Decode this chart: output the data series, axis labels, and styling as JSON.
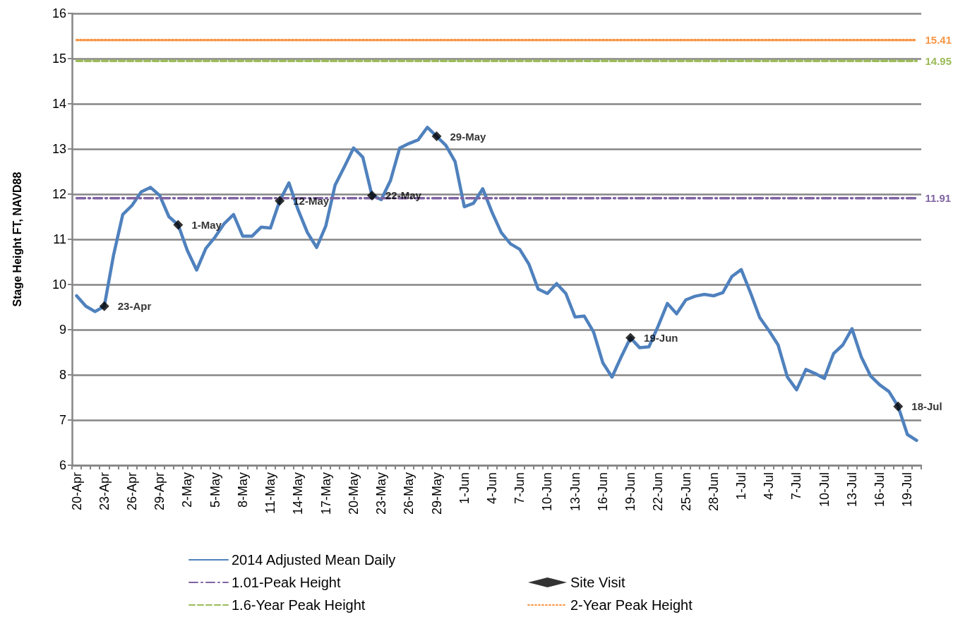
{
  "chart_data": {
    "type": "line",
    "ylabel": "Stage Height FT, NAVD88",
    "categories": [
      "20-Apr",
      null,
      null,
      "23-Apr",
      null,
      null,
      "26-Apr",
      null,
      null,
      "29-Apr",
      null,
      null,
      "2-May",
      null,
      null,
      "5-May",
      null,
      null,
      "8-May",
      null,
      null,
      "11-May",
      null,
      null,
      "14-May",
      null,
      null,
      "17-May",
      null,
      null,
      "20-May",
      null,
      null,
      "23-May",
      null,
      null,
      "26-May",
      null,
      null,
      "29-May",
      null,
      null,
      "1-Jun",
      null,
      null,
      "4-Jun",
      null,
      null,
      "7-Jun",
      null,
      null,
      "10-Jun",
      null,
      null,
      "13-Jun",
      null,
      null,
      "16-Jun",
      null,
      null,
      "19-Jun",
      null,
      null,
      "22-Jun",
      null,
      null,
      "25-Jun",
      null,
      null,
      "28-Jun",
      null,
      null,
      "1-Jul",
      null,
      null,
      "4-Jul",
      null,
      null,
      "7-Jul",
      null,
      null,
      "10-Jul",
      null,
      null,
      "13-Jul",
      null,
      null,
      "16-Jul",
      null,
      null,
      "19-Jul",
      null
    ],
    "ylim": [
      6,
      16
    ],
    "yticks": [
      6,
      7,
      8,
      9,
      10,
      11,
      12,
      13,
      14,
      15,
      16
    ],
    "grid": "y",
    "legend": "bottom",
    "series": [
      {
        "name": "2014 Adjusted Mean Daily",
        "line_style": "solid",
        "color": "#4f81bd",
        "values": [
          9.75,
          9.52,
          9.4,
          9.52,
          10.65,
          11.55,
          11.75,
          12.05,
          12.15,
          11.97,
          11.5,
          11.32,
          10.75,
          10.32,
          10.8,
          11.05,
          11.35,
          11.55,
          11.07,
          11.07,
          11.27,
          11.25,
          11.85,
          12.25,
          11.65,
          11.15,
          10.82,
          11.3,
          12.2,
          12.6,
          13.02,
          12.82,
          11.97,
          11.88,
          12.3,
          13.02,
          13.12,
          13.2,
          13.48,
          13.28,
          13.08,
          12.72,
          11.72,
          11.8,
          12.12,
          11.6,
          11.15,
          10.9,
          10.78,
          10.45,
          9.9,
          9.8,
          10.02,
          9.8,
          9.28,
          9.3,
          8.95,
          8.27,
          7.95,
          8.4,
          8.82,
          8.6,
          8.62,
          9.08,
          9.58,
          9.35,
          9.66,
          9.74,
          9.78,
          9.75,
          9.82,
          10.18,
          10.33,
          9.82,
          9.27,
          8.98,
          8.66,
          7.95,
          7.67,
          8.12,
          8.03,
          7.92,
          8.47,
          8.66,
          9.02,
          8.4,
          7.98,
          7.78,
          7.63,
          7.3,
          6.68,
          6.55
        ]
      },
      {
        "name": "Site Visit",
        "type": "scatter",
        "marker": "diamond",
        "color": "#000000",
        "values": [
          null,
          null,
          null,
          9.52,
          null,
          null,
          null,
          null,
          null,
          null,
          null,
          11.32,
          null,
          null,
          null,
          null,
          null,
          null,
          null,
          null,
          null,
          null,
          11.85,
          null,
          null,
          null,
          null,
          null,
          null,
          null,
          null,
          null,
          11.97,
          null,
          null,
          null,
          null,
          null,
          null,
          13.28,
          null,
          null,
          null,
          null,
          null,
          null,
          null,
          null,
          null,
          null,
          null,
          null,
          null,
          null,
          null,
          null,
          null,
          null,
          null,
          null,
          8.82,
          null,
          null,
          null,
          null,
          null,
          null,
          null,
          null,
          null,
          null,
          null,
          null,
          null,
          null,
          null,
          null,
          null,
          null,
          null,
          null,
          null,
          null,
          null,
          null,
          null,
          null,
          null,
          null,
          7.3,
          null,
          null
        ],
        "value_labels": [
          null,
          null,
          null,
          "23-Apr",
          null,
          null,
          null,
          null,
          null,
          null,
          null,
          "1-May",
          null,
          null,
          null,
          null,
          null,
          null,
          null,
          null,
          null,
          null,
          "12-May",
          null,
          null,
          null,
          null,
          null,
          null,
          null,
          null,
          null,
          "22-May",
          null,
          null,
          null,
          null,
          null,
          null,
          "29-May",
          null,
          null,
          null,
          null,
          null,
          null,
          null,
          null,
          null,
          null,
          null,
          null,
          null,
          null,
          null,
          null,
          null,
          null,
          null,
          null,
          "19-Jun",
          null,
          null,
          null,
          null,
          null,
          null,
          null,
          null,
          null,
          null,
          null,
          null,
          null,
          null,
          null,
          null,
          null,
          null,
          null,
          null,
          null,
          null,
          null,
          null,
          null,
          null,
          null,
          null,
          "18-Jul",
          null,
          null
        ]
      },
      {
        "name": "1.01-Peak Height",
        "line_style": "dashdot",
        "color": "#8064a2",
        "values": [
          11.91,
          11.91,
          11.91,
          11.91,
          11.91,
          11.91,
          11.91,
          11.91,
          11.91,
          11.91,
          11.91,
          11.91,
          11.91,
          11.91,
          11.91,
          11.91,
          11.91,
          11.91,
          11.91,
          11.91,
          11.91,
          11.91,
          11.91,
          11.91,
          11.91,
          11.91,
          11.91,
          11.91,
          11.91,
          11.91,
          11.91,
          11.91,
          11.91,
          11.91,
          11.91,
          11.91,
          11.91,
          11.91,
          11.91,
          11.91,
          11.91,
          11.91,
          11.91,
          11.91,
          11.91,
          11.91,
          11.91,
          11.91,
          11.91,
          11.91,
          11.91,
          11.91,
          11.91,
          11.91,
          11.91,
          11.91,
          11.91,
          11.91,
          11.91,
          11.91,
          11.91,
          11.91,
          11.91,
          11.91,
          11.91,
          11.91,
          11.91,
          11.91,
          11.91,
          11.91,
          11.91,
          11.91,
          11.91,
          11.91,
          11.91,
          11.91,
          11.91,
          11.91,
          11.91,
          11.91,
          11.91,
          11.91,
          11.91,
          11.91,
          11.91,
          11.91,
          11.91,
          11.91,
          11.91,
          11.91,
          11.91,
          11.91
        ],
        "value_labels": [
          null,
          null,
          null,
          null,
          null,
          null,
          null,
          null,
          null,
          null,
          null,
          null,
          null,
          null,
          null,
          null,
          null,
          null,
          null,
          null,
          null,
          null,
          null,
          null,
          null,
          null,
          null,
          null,
          null,
          null,
          null,
          null,
          null,
          null,
          null,
          null,
          null,
          null,
          null,
          null,
          null,
          null,
          null,
          null,
          null,
          null,
          null,
          null,
          null,
          null,
          null,
          null,
          null,
          null,
          null,
          null,
          null,
          null,
          null,
          null,
          null,
          null,
          null,
          null,
          null,
          null,
          null,
          null,
          null,
          null,
          null,
          null,
          null,
          null,
          null,
          null,
          null,
          null,
          null,
          null,
          null,
          null,
          null,
          null,
          null,
          null,
          null,
          null,
          null,
          null,
          null,
          "11.91"
        ]
      },
      {
        "name": "2-Year Peak Height",
        "line_style": "dotted",
        "color": "#f79646",
        "values": [
          15.41,
          15.41,
          15.41,
          15.41,
          15.41,
          15.41,
          15.41,
          15.41,
          15.41,
          15.41,
          15.41,
          15.41,
          15.41,
          15.41,
          15.41,
          15.41,
          15.41,
          15.41,
          15.41,
          15.41,
          15.41,
          15.41,
          15.41,
          15.41,
          15.41,
          15.41,
          15.41,
          15.41,
          15.41,
          15.41,
          15.41,
          15.41,
          15.41,
          15.41,
          15.41,
          15.41,
          15.41,
          15.41,
          15.41,
          15.41,
          15.41,
          15.41,
          15.41,
          15.41,
          15.41,
          15.41,
          15.41,
          15.41,
          15.41,
          15.41,
          15.41,
          15.41,
          15.41,
          15.41,
          15.41,
          15.41,
          15.41,
          15.41,
          15.41,
          15.41,
          15.41,
          15.41,
          15.41,
          15.41,
          15.41,
          15.41,
          15.41,
          15.41,
          15.41,
          15.41,
          15.41,
          15.41,
          15.41,
          15.41,
          15.41,
          15.41,
          15.41,
          15.41,
          15.41,
          15.41,
          15.41,
          15.41,
          15.41,
          15.41,
          15.41,
          15.41,
          15.41,
          15.41,
          15.41,
          15.41,
          15.41,
          15.41
        ],
        "value_labels": [
          null,
          null,
          null,
          null,
          null,
          null,
          null,
          null,
          null,
          null,
          null,
          null,
          null,
          null,
          null,
          null,
          null,
          null,
          null,
          null,
          null,
          null,
          null,
          null,
          null,
          null,
          null,
          null,
          null,
          null,
          null,
          null,
          null,
          null,
          null,
          null,
          null,
          null,
          null,
          null,
          null,
          null,
          null,
          null,
          null,
          null,
          null,
          null,
          null,
          null,
          null,
          null,
          null,
          null,
          null,
          null,
          null,
          null,
          null,
          null,
          null,
          null,
          null,
          null,
          null,
          null,
          null,
          null,
          null,
          null,
          null,
          null,
          null,
          null,
          null,
          null,
          null,
          null,
          null,
          null,
          null,
          null,
          null,
          null,
          null,
          null,
          null,
          null,
          null,
          null,
          null,
          "15.41"
        ]
      },
      {
        "name": "1.6-Year Peak Height",
        "line_style": "dashed",
        "color": "#9bbb59",
        "values": [
          14.95,
          14.95,
          14.95,
          14.95,
          14.95,
          14.95,
          14.95,
          14.95,
          14.95,
          14.95,
          14.95,
          14.95,
          14.95,
          14.95,
          14.95,
          14.95,
          14.95,
          14.95,
          14.95,
          14.95,
          14.95,
          14.95,
          14.95,
          14.95,
          14.95,
          14.95,
          14.95,
          14.95,
          14.95,
          14.95,
          14.95,
          14.95,
          14.95,
          14.95,
          14.95,
          14.95,
          14.95,
          14.95,
          14.95,
          14.95,
          14.95,
          14.95,
          14.95,
          14.95,
          14.95,
          14.95,
          14.95,
          14.95,
          14.95,
          14.95,
          14.95,
          14.95,
          14.95,
          14.95,
          14.95,
          14.95,
          14.95,
          14.95,
          14.95,
          14.95,
          14.95,
          14.95,
          14.95,
          14.95,
          14.95,
          14.95,
          14.95,
          14.95,
          14.95,
          14.95,
          14.95,
          14.95,
          14.95,
          14.95,
          14.95,
          14.95,
          14.95,
          14.95,
          14.95,
          14.95,
          14.95,
          14.95,
          14.95,
          14.95,
          14.95,
          14.95,
          14.95,
          14.95,
          14.95,
          14.95,
          14.95,
          14.95
        ],
        "value_labels": [
          null,
          null,
          null,
          null,
          null,
          null,
          null,
          null,
          null,
          null,
          null,
          null,
          null,
          null,
          null,
          null,
          null,
          null,
          null,
          null,
          null,
          null,
          null,
          null,
          null,
          null,
          null,
          null,
          null,
          null,
          null,
          null,
          null,
          null,
          null,
          null,
          null,
          null,
          null,
          null,
          null,
          null,
          null,
          null,
          null,
          null,
          null,
          null,
          null,
          null,
          null,
          null,
          null,
          null,
          null,
          null,
          null,
          null,
          null,
          null,
          null,
          null,
          null,
          null,
          null,
          null,
          null,
          null,
          null,
          null,
          null,
          null,
          null,
          null,
          null,
          null,
          null,
          null,
          null,
          null,
          null,
          null,
          null,
          null,
          null,
          null,
          null,
          null,
          null,
          null,
          null,
          "14.95"
        ]
      }
    ]
  }
}
